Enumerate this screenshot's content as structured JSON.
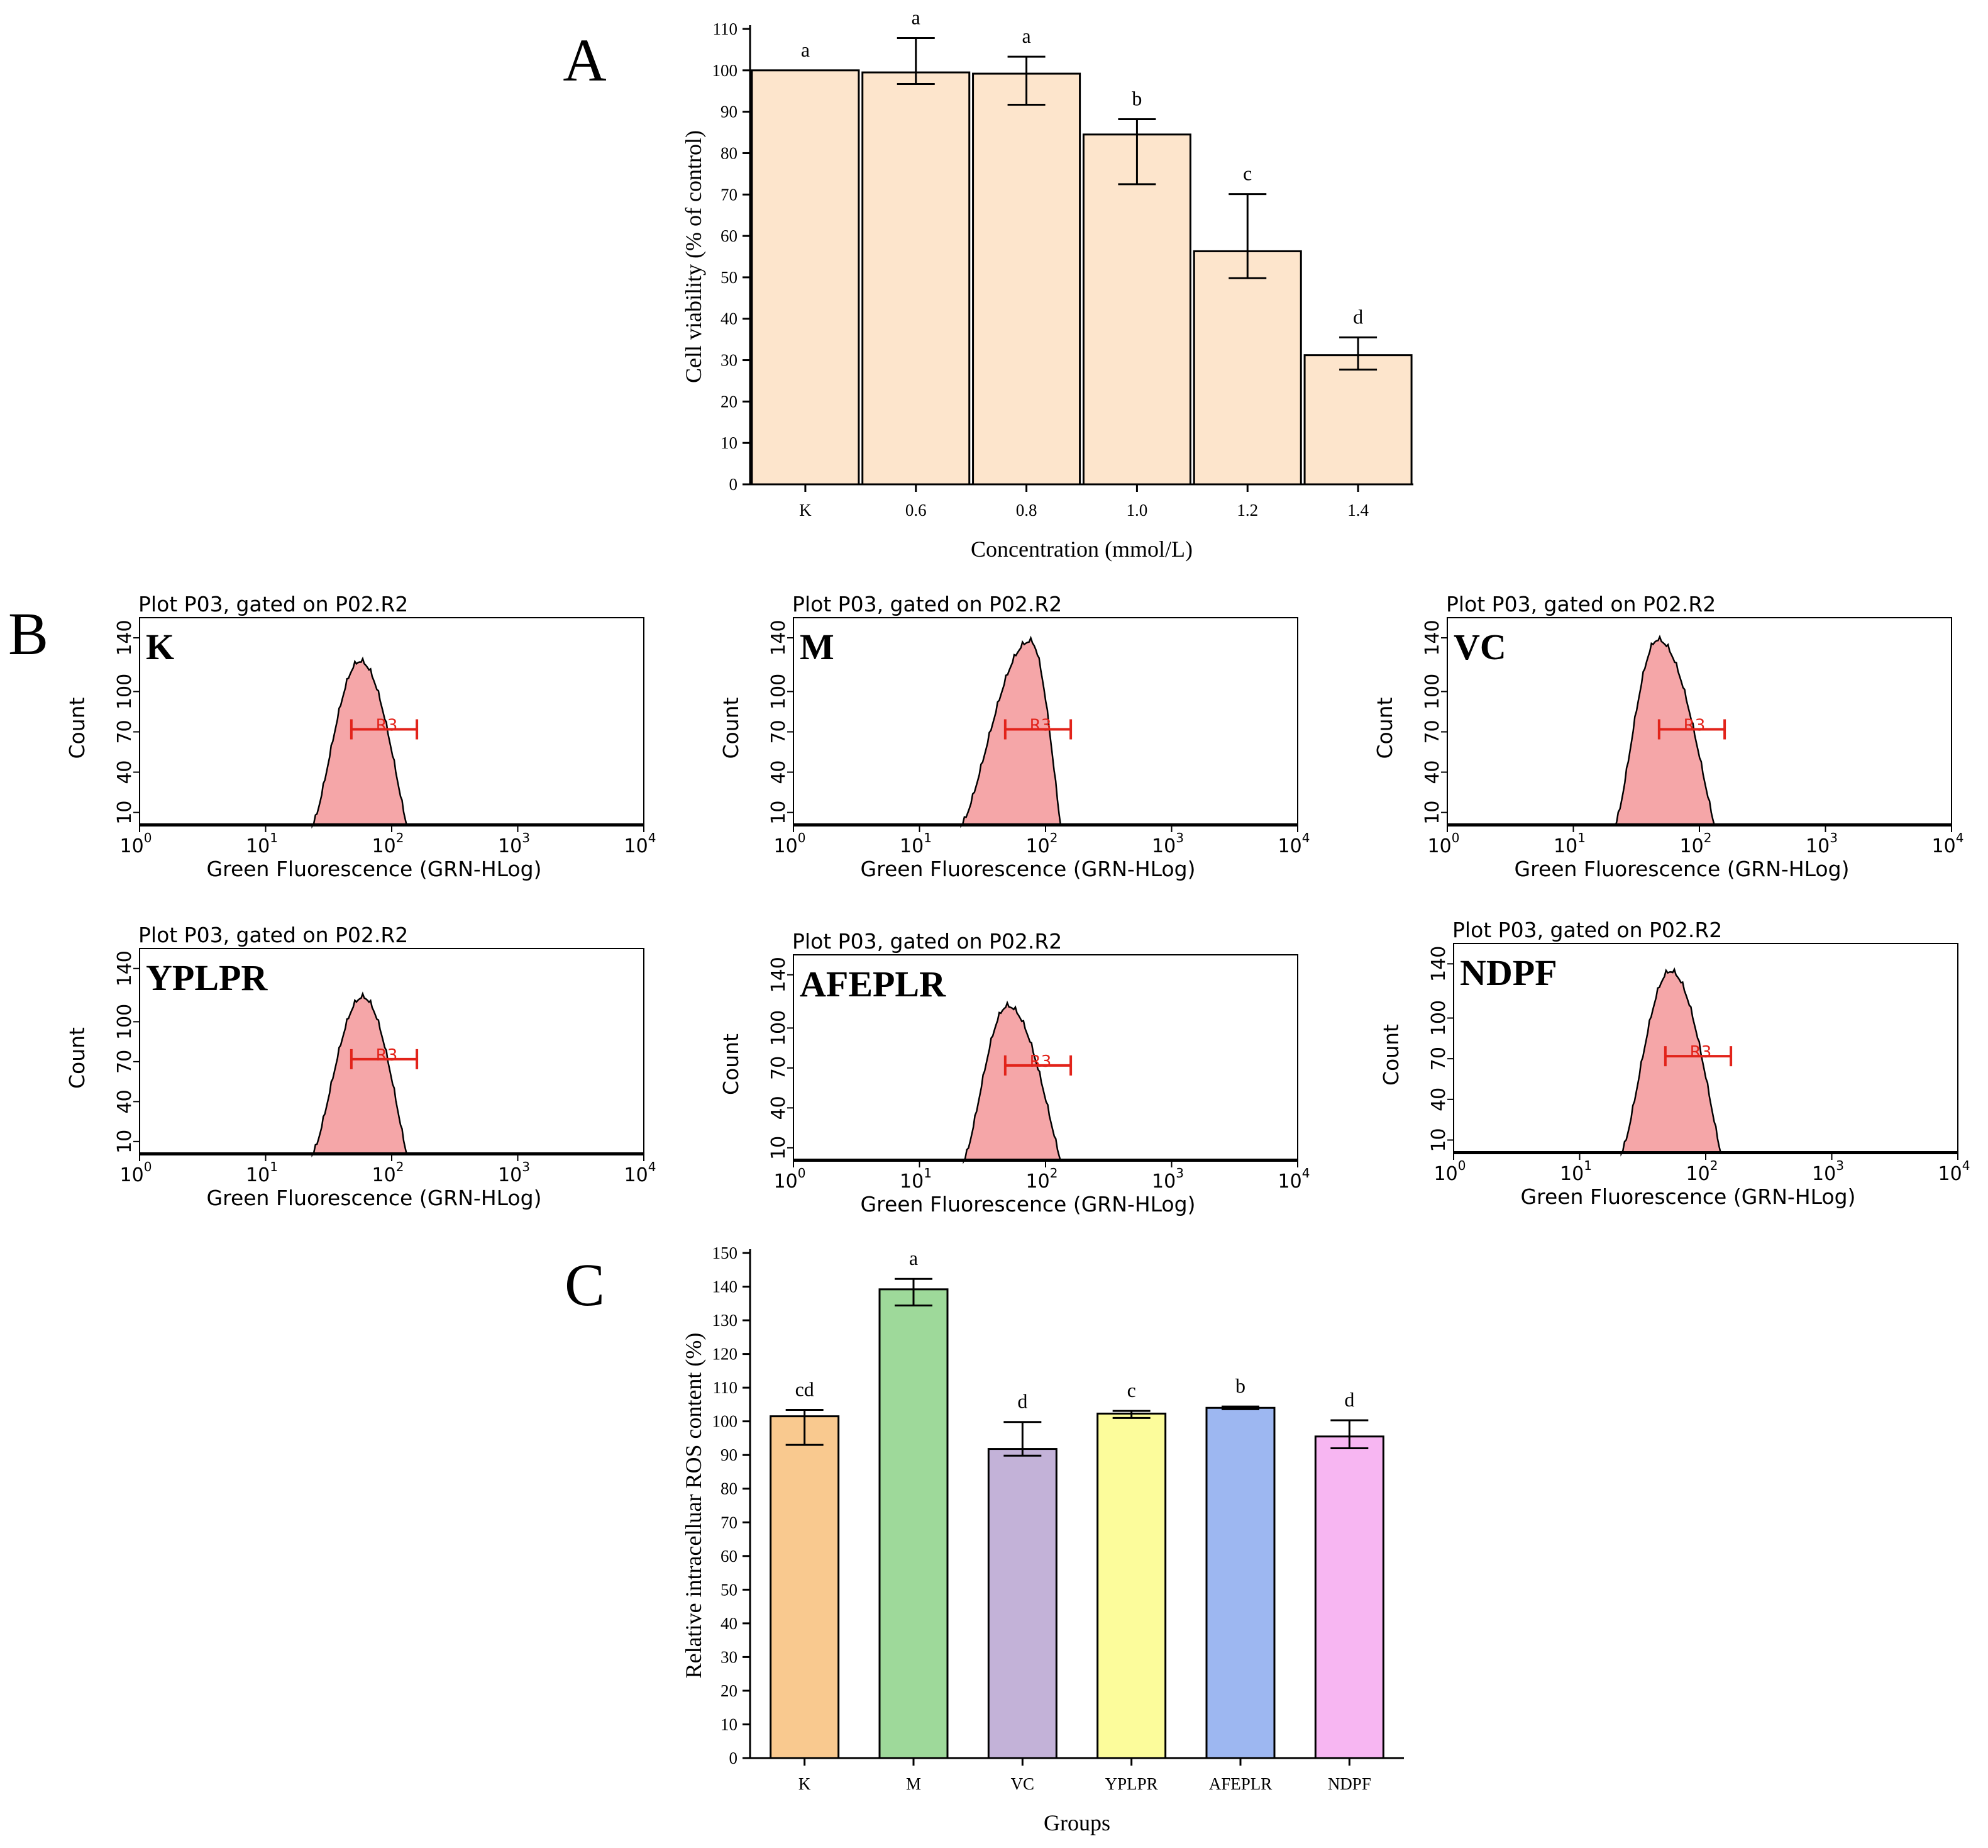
{
  "chart_data": [
    {
      "id": "A",
      "type": "bar",
      "panel_label": "A",
      "categories": [
        "K",
        "0.6",
        "0.8",
        "1.0",
        "1.2",
        "1.4"
      ],
      "values": [
        100,
        99.5,
        99.2,
        84.5,
        56.3,
        31.2
      ],
      "errors_upper": [
        0,
        8.3,
        4.1,
        3.7,
        13.8,
        4.3
      ],
      "errors_lower": [
        0,
        2.8,
        7.5,
        12.0,
        6.5,
        3.5
      ],
      "significance": [
        "a",
        "a",
        "a",
        "b",
        "c",
        "d"
      ],
      "ylabel": "Cell viability (% of control)",
      "xlabel": "Concentration (mmol/L)",
      "ylim": [
        0,
        110
      ],
      "yticks": [
        "0",
        "10",
        "20",
        "30",
        "40",
        "50",
        "60",
        "70",
        "80",
        "90",
        "100",
        "110"
      ],
      "bar_color": "#fde5cc"
    },
    {
      "id": "B",
      "type": "histogram",
      "panel_label": "B",
      "plots": [
        {
          "label": "K",
          "title": "Plot P03, gated on P02.R2",
          "ylabel": "Count",
          "xlabel": "Green Fluorescence (GRN-HLog)",
          "yticks": [
            "10",
            "40",
            "70",
            "100",
            "140"
          ],
          "xticks": [
            "10",
            "10",
            "10",
            "10",
            "10"
          ],
          "xtick_exp": [
            "0",
            "1",
            "2",
            "3",
            "4"
          ],
          "gate_label": "R3",
          "gate_range": [
            1.68,
            2.2
          ],
          "peak_log": 1.75,
          "peak_count": 122,
          "start_log": 1.37,
          "end_log": 2.12
        },
        {
          "label": "M",
          "title": "Plot P03, gated on P02.R2",
          "ylabel": "Count",
          "xlabel": "Green Fluorescence (GRN-HLog)",
          "yticks": [
            "10",
            "40",
            "70",
            "100",
            "140"
          ],
          "xticks": [
            "10",
            "10",
            "10",
            "10",
            "10"
          ],
          "xtick_exp": [
            "0",
            "1",
            "2",
            "3",
            "4"
          ],
          "gate_label": "R3",
          "gate_range": [
            1.68,
            2.2
          ],
          "peak_log": 1.88,
          "peak_count": 137,
          "start_log": 1.33,
          "end_log": 2.12
        },
        {
          "label": "VC",
          "title": "Plot P03, gated on P02.R2",
          "ylabel": "Count",
          "xlabel": "Green Fluorescence (GRN-HLog)",
          "yticks": [
            "10",
            "40",
            "70",
            "100",
            "140"
          ],
          "xticks": [
            "10",
            "10",
            "10",
            "10",
            "10"
          ],
          "xtick_exp": [
            "0",
            "1",
            "2",
            "3",
            "4"
          ],
          "gate_label": "R3",
          "gate_range": [
            1.68,
            2.2
          ],
          "peak_log": 1.67,
          "peak_count": 138,
          "start_log": 1.33,
          "end_log": 2.12
        },
        {
          "label": "YPLPR",
          "title": "Plot P03, gated on P02.R2",
          "ylabel": "Count",
          "xlabel": "Green Fluorescence (GRN-HLog)",
          "yticks": [
            "10",
            "40",
            "70",
            "100",
            "140"
          ],
          "xticks": [
            "10",
            "10",
            "10",
            "10",
            "10"
          ],
          "xtick_exp": [
            "0",
            "1",
            "2",
            "3",
            "4"
          ],
          "gate_label": "R3",
          "gate_range": [
            1.68,
            2.2
          ],
          "peak_log": 1.77,
          "peak_count": 118,
          "start_log": 1.37,
          "end_log": 2.12
        },
        {
          "label": "AFEPLR",
          "title": "Plot P03, gated on P02.R2",
          "ylabel": "Count",
          "xlabel": "Green Fluorescence (GRN-HLog)",
          "yticks": [
            "10",
            "40",
            "70",
            "100",
            "140"
          ],
          "xticks": [
            "10",
            "10",
            "10",
            "10",
            "10"
          ],
          "xtick_exp": [
            "0",
            "1",
            "2",
            "3",
            "4"
          ],
          "gate_label": "R3",
          "gate_range": [
            1.68,
            2.2
          ],
          "peak_log": 1.7,
          "peak_count": 116,
          "start_log": 1.35,
          "end_log": 2.12
        },
        {
          "label": "NDPF",
          "title": "Plot P03, gated on P02.R2",
          "ylabel": "Count",
          "xlabel": "Green Fluorescence (GRN-HLog)",
          "yticks": [
            "10",
            "40",
            "70",
            "100",
            "140"
          ],
          "xticks": [
            "10",
            "10",
            "10",
            "10",
            "10"
          ],
          "xtick_exp": [
            "0",
            "1",
            "2",
            "3",
            "4"
          ],
          "gate_label": "R3",
          "gate_range": [
            1.68,
            2.2
          ],
          "peak_log": 1.72,
          "peak_count": 134,
          "start_log": 1.33,
          "end_log": 2.12
        }
      ],
      "fill_color": "#f5a6a8",
      "gate_color": "#e2231a"
    },
    {
      "id": "C",
      "type": "bar",
      "panel_label": "C",
      "categories": [
        "K",
        "M",
        "VC",
        "YPLPR",
        "AFEPLR",
        "NDPF"
      ],
      "values": [
        101.5,
        139.2,
        91.8,
        102.3,
        104.0,
        95.5
      ],
      "errors_upper": [
        1.9,
        3.1,
        8.0,
        0.8,
        0.4,
        4.8
      ],
      "errors_lower": [
        8.5,
        4.8,
        2.0,
        1.3,
        0.4,
        3.5
      ],
      "significance": [
        "cd",
        "a",
        "d",
        "c",
        "b",
        "d"
      ],
      "colors": [
        "#f9c98f",
        "#9ed99a",
        "#c3b2d8",
        "#fcfc9b",
        "#9db7f1",
        "#f7b6f2"
      ],
      "ylabel": "Relative intracelluar ROS content (%)",
      "xlabel": "Groups",
      "ylim": [
        0,
        150
      ],
      "yticks": [
        "0",
        "10",
        "20",
        "30",
        "40",
        "50",
        "60",
        "70",
        "80",
        "90",
        "100",
        "110",
        "120",
        "130",
        "140",
        "150"
      ]
    }
  ]
}
